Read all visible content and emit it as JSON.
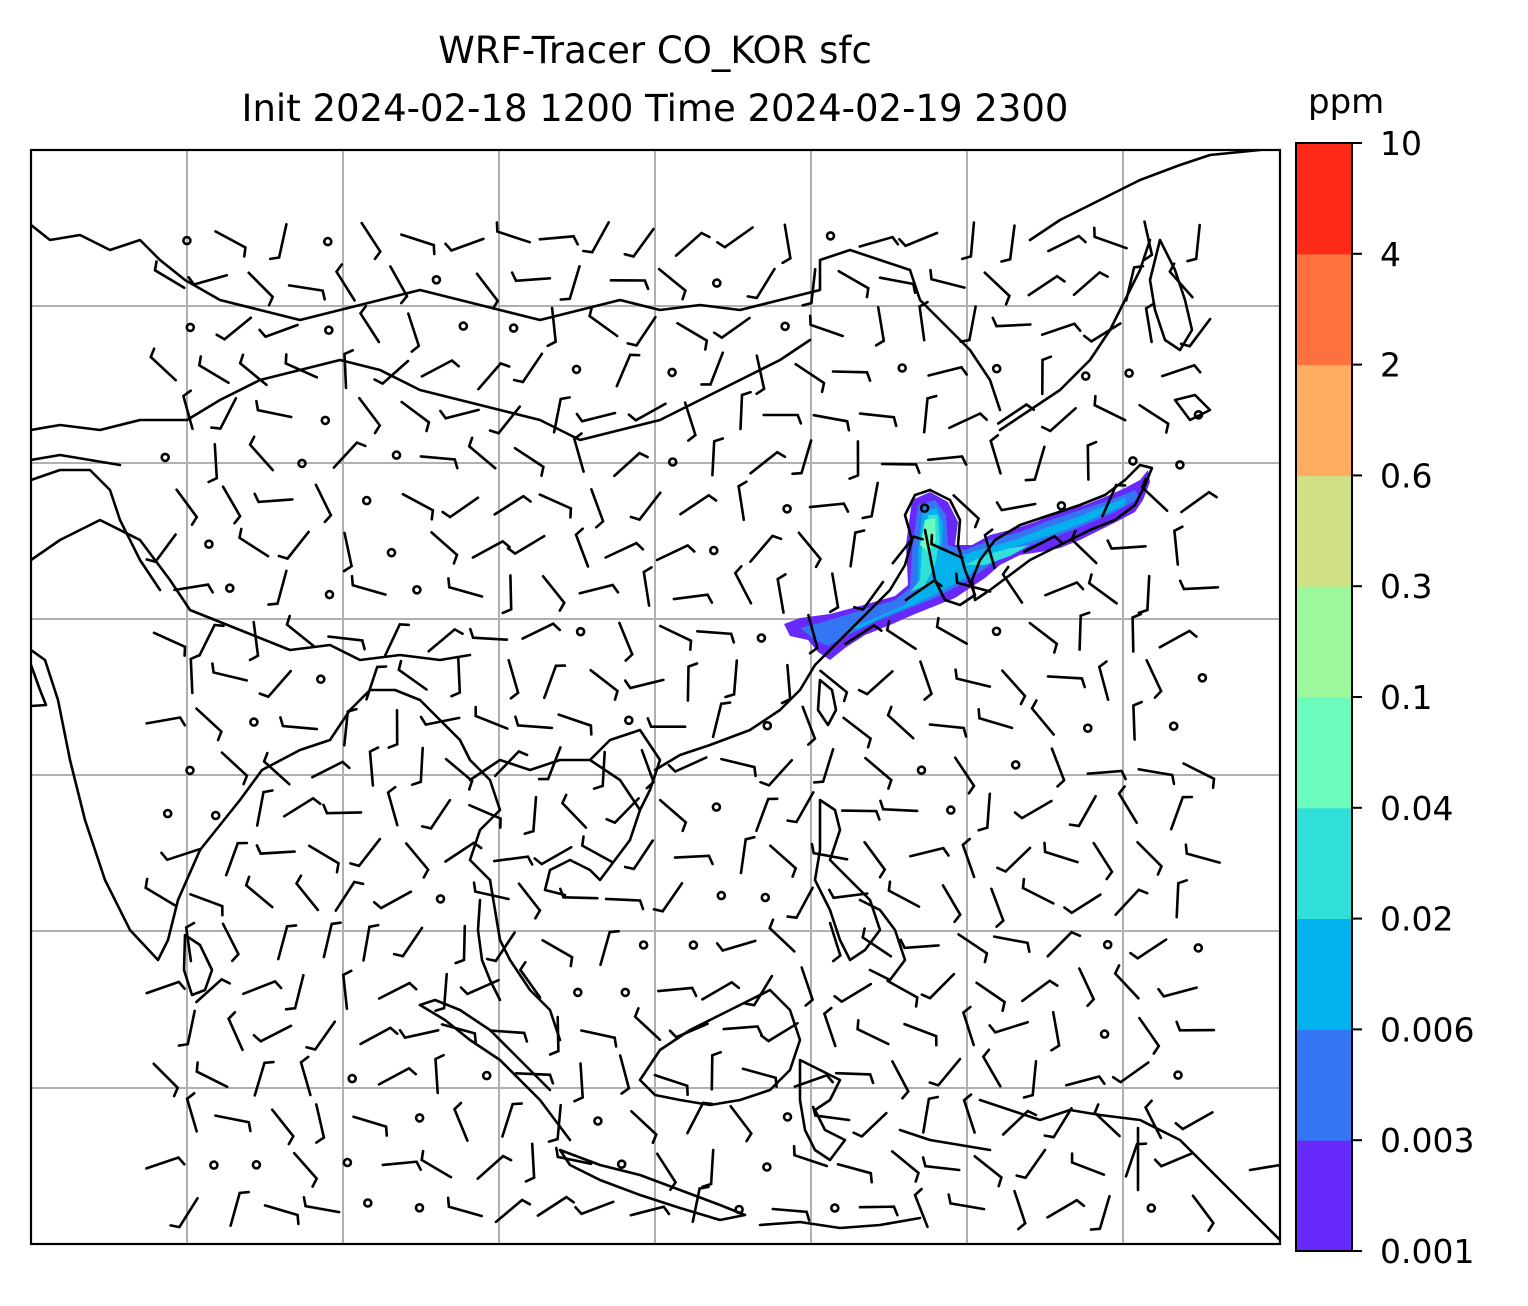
{
  "title": {
    "line1": "WRF-Tracer CO_KOR sfc",
    "line2": "Init 2024-02-18 1200 Time 2024-02-19 2300"
  },
  "colorbar": {
    "unit": "ppm",
    "ticks": [
      "0.001",
      "0.003",
      "0.006",
      "0.02",
      "0.04",
      "0.1",
      "0.3",
      "0.6",
      "2",
      "4",
      "10"
    ],
    "colors": [
      "#6629f9",
      "#3375f2",
      "#03b2ec",
      "#30e0d8",
      "#6bfbbd",
      "#9cf89a",
      "#d0e085",
      "#ffae61",
      "#ff713e",
      "#ff2a17"
    ]
  }
}
